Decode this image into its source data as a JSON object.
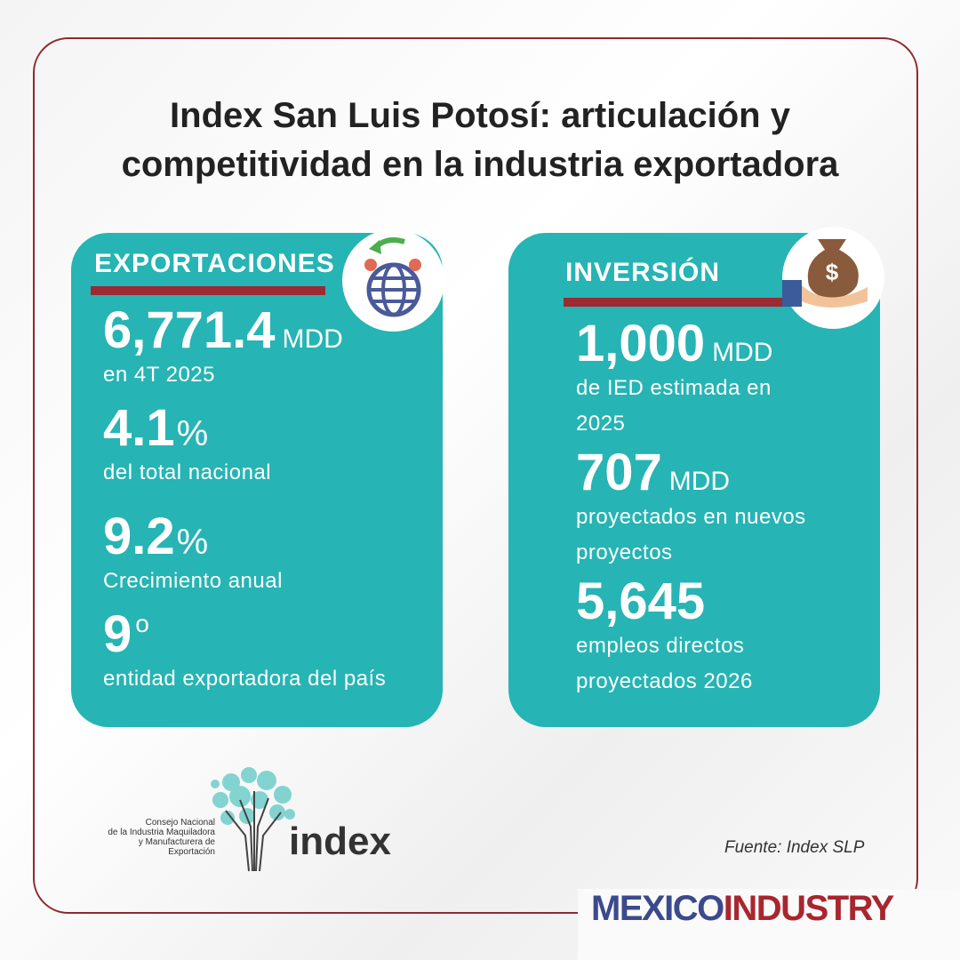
{
  "header": {
    "title": [
      "Index San Luis Potosí: articulación y",
      "competitividad en la industria exportadora"
    ]
  },
  "cards": [
    {
      "heading": "EXPORTACIONES",
      "stats": [
        {
          "value": "6,771.4",
          "unit": "MDD",
          "label": [
            "en 4T 2025"
          ]
        },
        {
          "value": "4.1",
          "unit": "%",
          "label": [
            "del total nacional"
          ]
        },
        {
          "value": "9.2",
          "unit": "%",
          "label": [
            "Crecimiento anual"
          ]
        },
        {
          "value": "9",
          "unit": "o",
          "label": [
            "entidad exportadora del país"
          ]
        }
      ]
    },
    {
      "heading": "INVERSIÓN",
      "stats": [
        {
          "value": "1,000",
          "unit": "MDD",
          "label": [
            "de IED estimada en",
            "2025"
          ]
        },
        {
          "value": "707",
          "unit": "MDD",
          "label": [
            "proyectados en nuevos",
            "proyectos"
          ]
        },
        {
          "value": "5,645",
          "label": [
            "empleos directos",
            "proyectados 2026"
          ]
        }
      ]
    }
  ],
  "logo": {
    "org": [
      "Consejo Nacional",
      "de la Industria Maquiladora",
      "y Manufacturera de Exportación"
    ],
    "name": "index"
  },
  "source": "Fuente: Index SLP",
  "brand": {
    "first": "MEXICO",
    "second": "INDUSTRY"
  }
}
